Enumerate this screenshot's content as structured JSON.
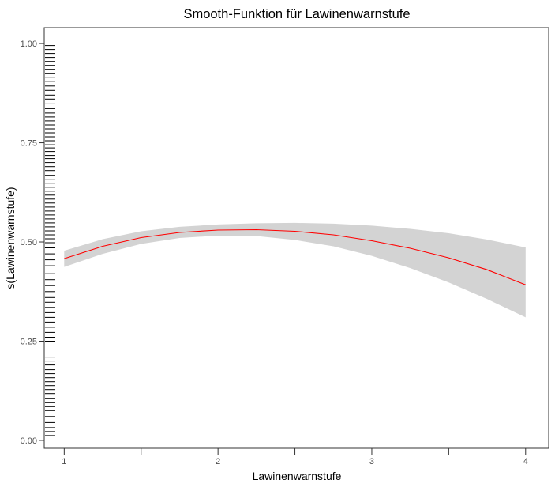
{
  "chart_data": {
    "type": "line",
    "title": "Smooth-Funktion für Lawinenwarnstufe",
    "xlabel": "Lawinenwarnstufe",
    "ylabel": "s(Lawinenwarnstufe)",
    "xlim": [
      0.87,
      4.15
    ],
    "ylim": [
      -0.02,
      1.04
    ],
    "x_ticks": [
      1,
      1.5,
      2,
      2.5,
      3,
      3.5,
      4
    ],
    "x_tick_labels": [
      "1",
      "",
      "2",
      "",
      "3",
      "",
      "4"
    ],
    "y_ticks": [
      0,
      0.25,
      0.5,
      0.75,
      1
    ],
    "y_tick_labels": [
      "0.00",
      "0.25",
      "0.50",
      "0.75",
      "1.00"
    ],
    "grid": false,
    "colors": {
      "line": "#ff0000",
      "band": "#d3d3d3",
      "rug": "#000000"
    },
    "series": [
      {
        "x": [
          1,
          1.25,
          1.5,
          1.75,
          2,
          2.25,
          2.5,
          2.75,
          3,
          3.25,
          3.5,
          3.75,
          4
        ],
        "y": [
          0.458,
          0.489,
          0.511,
          0.524,
          0.53,
          0.531,
          0.527,
          0.518,
          0.503,
          0.484,
          0.46,
          0.43,
          0.392
        ],
        "lower": [
          0.437,
          0.47,
          0.495,
          0.51,
          0.516,
          0.515,
          0.505,
          0.489,
          0.465,
          0.434,
          0.398,
          0.356,
          0.31
        ],
        "upper": [
          0.478,
          0.507,
          0.527,
          0.538,
          0.544,
          0.547,
          0.548,
          0.546,
          0.541,
          0.533,
          0.522,
          0.506,
          0.486
        ]
      }
    ],
    "rug_y": [
      0.995,
      0.985,
      0.975,
      0.965,
      0.955,
      0.945,
      0.935,
      0.925,
      0.915,
      0.905,
      0.893,
      0.882,
      0.87,
      0.86,
      0.848,
      0.836,
      0.825,
      0.815,
      0.805,
      0.795,
      0.785,
      0.775,
      0.765,
      0.755,
      0.745,
      0.737,
      0.728,
      0.718,
      0.71,
      0.7,
      0.69,
      0.68,
      0.668,
      0.658,
      0.648,
      0.638,
      0.628,
      0.618,
      0.608,
      0.598,
      0.588,
      0.578,
      0.568,
      0.558,
      0.548,
      0.538,
      0.528,
      0.518,
      0.508,
      0.498,
      0.485,
      0.47,
      0.455,
      0.44,
      0.42,
      0.405,
      0.39,
      0.375,
      0.36,
      0.348,
      0.335,
      0.322,
      0.31,
      0.298,
      0.285,
      0.272,
      0.26,
      0.25,
      0.24,
      0.23,
      0.22,
      0.21,
      0.2,
      0.19,
      0.178,
      0.168,
      0.158,
      0.148,
      0.138,
      0.128,
      0.118,
      0.105,
      0.095,
      0.085,
      0.075,
      0.06,
      0.045,
      0.032,
      0.022,
      0.012
    ]
  }
}
